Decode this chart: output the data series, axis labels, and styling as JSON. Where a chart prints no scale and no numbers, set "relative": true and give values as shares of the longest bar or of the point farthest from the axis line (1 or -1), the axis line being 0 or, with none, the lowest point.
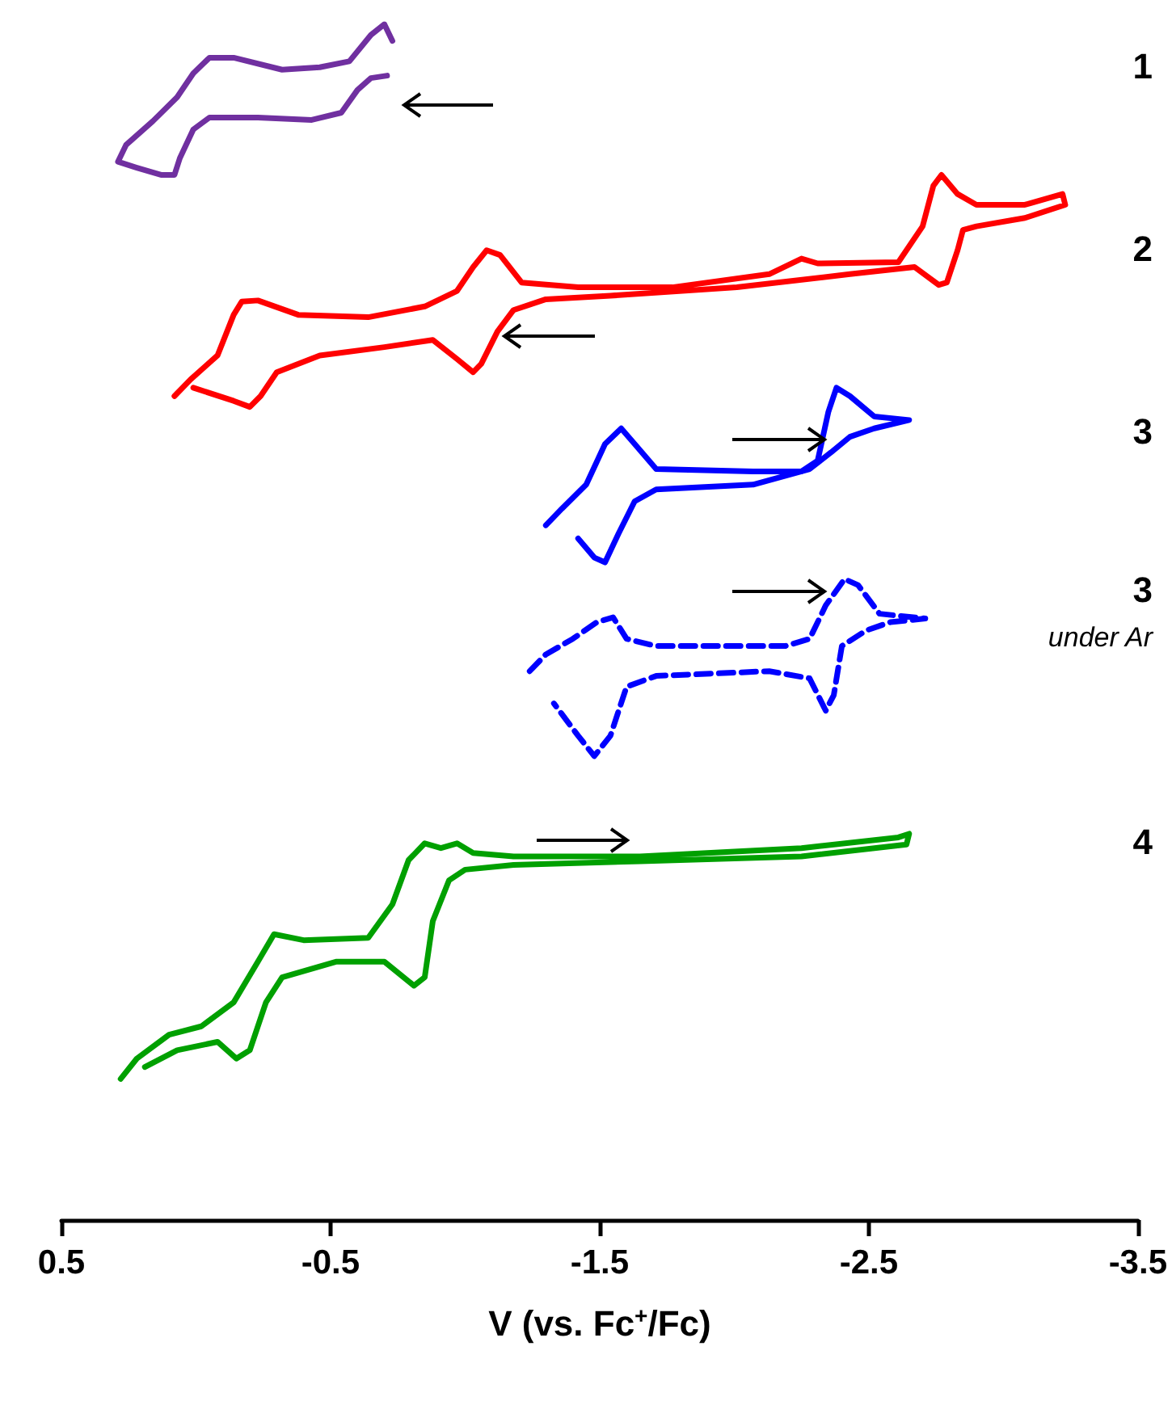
{
  "chart_data": {
    "type": "line",
    "relative": true,
    "xlabel": "V (vs. Fc$^{+}$/Fc)",
    "xlim": [
      0.5,
      -3.5
    ],
    "xticks": [
      0.5,
      -0.5,
      -1.5,
      -2.5,
      -3.5
    ],
    "marker": "none",
    "tick_labels": "x",
    "annotations": [
      "1",
      "2",
      "3",
      "3",
      "under Ar",
      "4"
    ],
    "series": [
      {
        "color": "#7030a0",
        "line_style": "solid",
        "x": [
          -0.71,
          -0.65,
          -0.6,
          -0.54,
          -0.43,
          -0.23,
          -0.05,
          0.01,
          0.06,
          0.08,
          0.13,
          0.22,
          0.29,
          0.26,
          0.16,
          0.07,
          0.01,
          -0.05,
          -0.14,
          -0.32,
          -0.46,
          -0.57,
          -0.65,
          -0.7,
          -0.73
        ],
        "values": [
          0.957,
          0.955,
          0.945,
          0.926,
          0.92,
          0.922,
          0.922,
          0.912,
          0.888,
          0.874,
          0.874,
          0.88,
          0.885,
          0.899,
          0.919,
          0.939,
          0.959,
          0.972,
          0.972,
          0.962,
          0.964,
          0.969,
          0.991,
          1.0,
          0.986
        ]
      },
      {
        "color": "#ff0000",
        "line_style": "solid",
        "x": [
          0.08,
          0.02,
          -0.08,
          -0.14,
          -0.17,
          -0.23,
          -0.38,
          -0.64,
          -0.85,
          -0.97,
          -1.03,
          -1.08,
          -1.13,
          -1.21,
          -1.42,
          -1.77,
          -2.13,
          -2.25,
          -2.31,
          -2.61,
          -2.7,
          -2.74,
          -2.77,
          -2.83,
          -2.9,
          -3.08,
          -3.22,
          -3.23,
          -3.08,
          -2.9,
          -2.85,
          -2.83,
          -2.79,
          -2.76,
          -2.67,
          -2.43,
          -2.01,
          -1.54,
          -1.3,
          -1.18,
          -1.12,
          -1.06,
          -1.03,
          -0.97,
          -0.88,
          -0.7,
          -0.46,
          -0.3,
          -0.24,
          -0.2,
          -0.14,
          0.01
        ],
        "values": [
          0.689,
          0.703,
          0.723,
          0.757,
          0.768,
          0.769,
          0.757,
          0.755,
          0.764,
          0.777,
          0.797,
          0.811,
          0.807,
          0.784,
          0.78,
          0.78,
          0.791,
          0.804,
          0.8,
          0.801,
          0.831,
          0.865,
          0.874,
          0.858,
          0.849,
          0.849,
          0.858,
          0.849,
          0.838,
          0.831,
          0.828,
          0.811,
          0.784,
          0.782,
          0.797,
          0.791,
          0.78,
          0.773,
          0.77,
          0.761,
          0.743,
          0.716,
          0.709,
          0.72,
          0.736,
          0.73,
          0.723,
          0.709,
          0.689,
          0.68,
          0.685,
          0.696
        ]
      },
      {
        "color": "#0000ff",
        "line_style": "solid",
        "x": [
          -1.3,
          -1.36,
          -1.45,
          -1.52,
          -1.58,
          -1.63,
          -1.71,
          -2.07,
          -2.25,
          -2.31,
          -2.35,
          -2.38,
          -2.43,
          -2.52,
          -2.65,
          -2.52,
          -2.43,
          -2.36,
          -2.28,
          -2.07,
          -1.71,
          -1.63,
          -1.57,
          -1.52,
          -1.48,
          -1.42
        ],
        "values": [
          0.581,
          0.595,
          0.615,
          0.649,
          0.662,
          0.649,
          0.628,
          0.626,
          0.626,
          0.635,
          0.676,
          0.696,
          0.689,
          0.672,
          0.669,
          0.662,
          0.655,
          0.642,
          0.628,
          0.615,
          0.611,
          0.601,
          0.574,
          0.55,
          0.554,
          0.57
        ]
      },
      {
        "color": "#0000ff",
        "line_style": "dashed",
        "x": [
          -1.24,
          -1.3,
          -1.4,
          -1.49,
          -1.55,
          -1.6,
          -1.71,
          -2.19,
          -2.28,
          -2.34,
          -2.41,
          -2.46,
          -2.54,
          -2.71,
          -2.58,
          -2.49,
          -2.4,
          -2.37,
          -2.34,
          -2.28,
          -2.13,
          -1.71,
          -1.6,
          -1.54,
          -1.48,
          -1.42,
          -1.33
        ],
        "values": [
          0.459,
          0.473,
          0.486,
          0.5,
          0.504,
          0.486,
          0.48,
          0.48,
          0.486,
          0.514,
          0.536,
          0.531,
          0.507,
          0.503,
          0.5,
          0.493,
          0.48,
          0.439,
          0.426,
          0.453,
          0.459,
          0.455,
          0.446,
          0.405,
          0.388,
          0.405,
          0.432
        ]
      },
      {
        "color": "#00a000",
        "line_style": "solid",
        "x": [
          0.28,
          0.22,
          0.1,
          -0.02,
          -0.14,
          -0.23,
          -0.29,
          -0.4,
          -0.64,
          -0.73,
          -0.79,
          -0.85,
          -0.91,
          -0.97,
          -1.03,
          -1.18,
          -1.65,
          -2.25,
          -2.61,
          -2.65,
          -2.64,
          -2.25,
          -1.65,
          -1.18,
          -1.0,
          -0.94,
          -0.88,
          -0.85,
          -0.81,
          -0.7,
          -0.52,
          -0.32,
          -0.26,
          -0.2,
          -0.15,
          -0.08,
          0.07,
          0.19
        ],
        "values": [
          0.118,
          0.135,
          0.155,
          0.162,
          0.182,
          0.216,
          0.239,
          0.234,
          0.236,
          0.264,
          0.301,
          0.315,
          0.311,
          0.315,
          0.307,
          0.304,
          0.304,
          0.311,
          0.32,
          0.323,
          0.314,
          0.304,
          0.3,
          0.297,
          0.293,
          0.284,
          0.25,
          0.203,
          0.196,
          0.216,
          0.216,
          0.203,
          0.182,
          0.142,
          0.135,
          0.149,
          0.142,
          0.128
        ]
      }
    ]
  }
}
